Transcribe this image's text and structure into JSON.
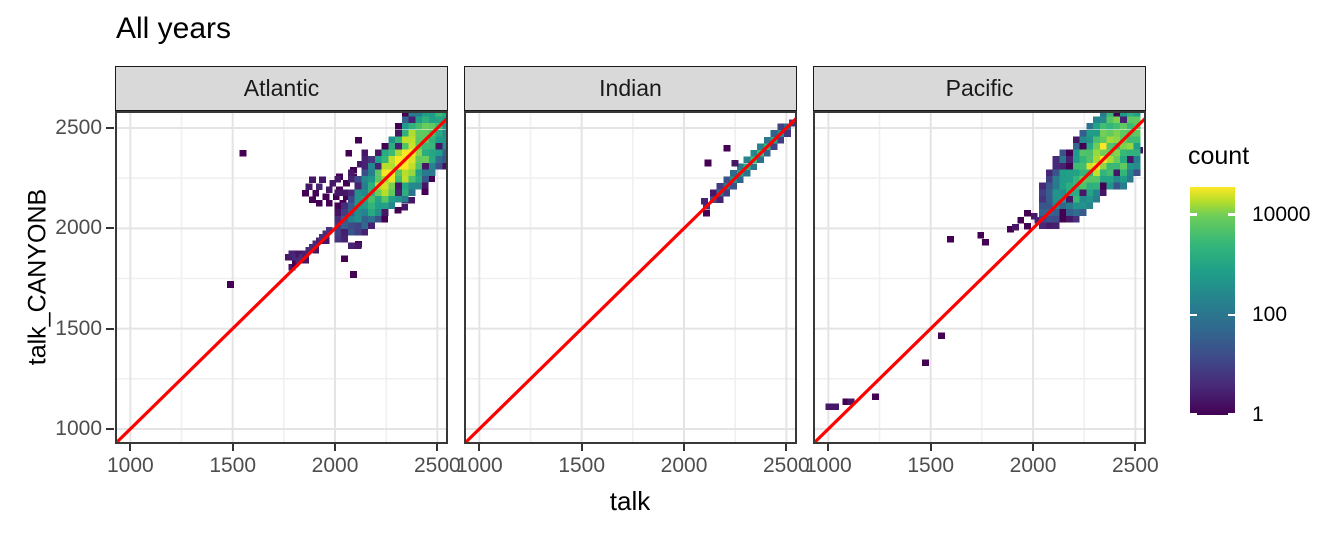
{
  "title": "All years",
  "axes": {
    "x_title": "talk",
    "y_title": "talk_CANYONB",
    "x_ticks": [
      1000,
      1500,
      2000,
      2500
    ],
    "y_ticks": [
      2500,
      2000,
      1500,
      1000
    ],
    "x_range": [
      925,
      2552
    ],
    "y_range": [
      925,
      2585
    ],
    "grid": "major-and-minor"
  },
  "legend": {
    "title": "count",
    "ticks": [
      {
        "label": "10000",
        "value": 10000
      },
      {
        "label": "100",
        "value": 100
      },
      {
        "label": "1",
        "value": 1
      }
    ],
    "log_max": 4.55,
    "position": "right",
    "viridis": [
      [
        0,
        "#440154"
      ],
      [
        0.125,
        "#482878"
      ],
      [
        0.25,
        "#3e4a89"
      ],
      [
        0.375,
        "#31688e"
      ],
      [
        0.5,
        "#26828e"
      ],
      [
        0.625,
        "#1f9e89"
      ],
      [
        0.75,
        "#35b779"
      ],
      [
        0.875,
        "#6ece58"
      ],
      [
        0.9375,
        "#b5de2b"
      ],
      [
        1,
        "#fde725"
      ]
    ]
  },
  "chart_data": {
    "type": "heatmap",
    "subtype": "bin2d-facets",
    "bin_size": 33,
    "identity_line": {
      "slope": 1,
      "intercept": 0,
      "color": "#ff0000",
      "width": 3.2
    },
    "facets": [
      {
        "label": "Atlantic",
        "bands": [
          {
            "x0": 2000,
            "x1": 2545,
            "step": 33,
            "off0": 15,
            "off1": 5,
            "sig0": 38,
            "sig1": 72,
            "peak": 24000,
            "pc": 2330,
            "ps": 75,
            "base": 5,
            "seed": 7,
            "halo": {
              "n": 34,
              "dmin": 70,
              "dmax": 230,
              "switch": 2330,
              "seed": 17
            }
          }
        ],
        "bins": [
          [
            1550,
            2375,
            1
          ],
          [
            1490,
            1720,
            1
          ],
          [
            2090,
            1770,
            1
          ],
          [
            2115,
            1920,
            1
          ],
          [
            2067,
            2375,
            1
          ],
          [
            2115,
            2440,
            1
          ],
          [
            1773,
            1856,
            2
          ],
          [
            1790,
            1807,
            2
          ],
          [
            1790,
            1872,
            3
          ],
          [
            1806,
            1856,
            4
          ],
          [
            1806,
            1823,
            1
          ],
          [
            1823,
            1840,
            4
          ],
          [
            1823,
            1872,
            2
          ],
          [
            1840,
            1856,
            5
          ],
          [
            1856,
            1840,
            2
          ],
          [
            1856,
            1872,
            3
          ],
          [
            1872,
            1890,
            4
          ],
          [
            1890,
            1906,
            5
          ],
          [
            1906,
            1890,
            2
          ],
          [
            1906,
            1923,
            4
          ],
          [
            1923,
            1939,
            3
          ],
          [
            1939,
            1956,
            5
          ],
          [
            1956,
            1939,
            2
          ],
          [
            1956,
            1972,
            4
          ],
          [
            1972,
            1990,
            6
          ],
          [
            1856,
            2175,
            1
          ],
          [
            1873,
            2208,
            2
          ],
          [
            1890,
            2142,
            1
          ],
          [
            1890,
            2242,
            2
          ],
          [
            1906,
            2175,
            1
          ],
          [
            1923,
            2208,
            3
          ],
          [
            1923,
            2125,
            1
          ],
          [
            1939,
            2242,
            2
          ],
          [
            1956,
            2158,
            1
          ],
          [
            1972,
            2192,
            2
          ],
          [
            1972,
            2125,
            1
          ],
          [
            1989,
            2225,
            2
          ],
          [
            2006,
            2158,
            1
          ],
          [
            2022,
            2258,
            1
          ],
          [
            2022,
            2192,
            1
          ],
          [
            2039,
            2125,
            1
          ],
          [
            2056,
            2225,
            1
          ],
          [
            2056,
            2158,
            1
          ],
          [
            2090,
            2290,
            1
          ],
          [
            2123,
            2320,
            2
          ],
          [
            2090,
            2255,
            1
          ],
          [
            2308,
            2090,
            1
          ],
          [
            2341,
            2105,
            2
          ],
          [
            2374,
            2140,
            2
          ],
          [
            2341,
            2140,
            1
          ],
          [
            2440,
            2215,
            2
          ],
          [
            2473,
            2248,
            1
          ],
          [
            2440,
            2182,
            1
          ],
          [
            2242,
            2045,
            1
          ]
        ]
      },
      {
        "label": "Indian",
        "bands": [],
        "bins": [
          [
            2110,
            2110,
            5
          ],
          [
            2143,
            2143,
            20
          ],
          [
            2176,
            2176,
            60
          ],
          [
            2209,
            2209,
            150
          ],
          [
            2242,
            2242,
            400
          ],
          [
            2275,
            2275,
            900
          ],
          [
            2308,
            2308,
            2000
          ],
          [
            2341,
            2341,
            3200
          ],
          [
            2374,
            2374,
            3200
          ],
          [
            2407,
            2407,
            2200
          ],
          [
            2440,
            2440,
            1100
          ],
          [
            2473,
            2473,
            350
          ],
          [
            2506,
            2506,
            50
          ],
          [
            2530,
            2525,
            6
          ],
          [
            2143,
            2176,
            2
          ],
          [
            2176,
            2209,
            8
          ],
          [
            2209,
            2242,
            20
          ],
          [
            2242,
            2275,
            60
          ],
          [
            2275,
            2308,
            120
          ],
          [
            2308,
            2341,
            220
          ],
          [
            2341,
            2374,
            260
          ],
          [
            2374,
            2407,
            200
          ],
          [
            2407,
            2440,
            120
          ],
          [
            2440,
            2473,
            40
          ],
          [
            2473,
            2506,
            10
          ],
          [
            2176,
            2143,
            3
          ],
          [
            2209,
            2176,
            8
          ],
          [
            2242,
            2209,
            20
          ],
          [
            2275,
            2242,
            45
          ],
          [
            2308,
            2275,
            90
          ],
          [
            2341,
            2308,
            110
          ],
          [
            2374,
            2341,
            80
          ],
          [
            2407,
            2374,
            40
          ],
          [
            2440,
            2407,
            10
          ],
          [
            2100,
            2135,
            3
          ],
          [
            2117,
            2326,
            1
          ],
          [
            2210,
            2400,
            1
          ],
          [
            2110,
            2076,
            1
          ],
          [
            2249,
            2325,
            2
          ],
          [
            2506,
            2473,
            6
          ],
          [
            2473,
            2440,
            8
          ]
        ]
      },
      {
        "label": "Pacific",
        "bands": [
          {
            "x0": 2040,
            "x1": 2530,
            "step": 33,
            "off0": 65,
            "off1": 5,
            "sig0": 50,
            "sig1": 80,
            "peak": 15000,
            "pc": 2360,
            "ps": 85,
            "base": 4,
            "seed": 11,
            "halo": {
              "n": 22,
              "dmin": 80,
              "dmax": 200,
              "switch": 2300,
              "seed": 29
            }
          }
        ],
        "bins": [
          [
            1003,
            1110,
            2
          ],
          [
            1036,
            1110,
            2
          ],
          [
            1085,
            1135,
            1
          ],
          [
            1110,
            1135,
            2
          ],
          [
            1230,
            1160,
            1
          ],
          [
            1475,
            1330,
            1
          ],
          [
            1553,
            1465,
            1
          ],
          [
            1597,
            1945,
            1
          ],
          [
            1745,
            1965,
            1
          ],
          [
            1768,
            1930,
            1
          ],
          [
            1890,
            1995,
            1
          ],
          [
            1915,
            2005,
            2
          ],
          [
            1973,
            2010,
            1
          ],
          [
            2006,
            2060,
            2
          ],
          [
            2023,
            2040,
            3
          ],
          [
            1940,
            2040,
            1
          ],
          [
            1973,
            2075,
            1
          ],
          [
            2485,
            2355,
            1
          ],
          [
            2520,
            2390,
            2
          ]
        ]
      }
    ]
  }
}
